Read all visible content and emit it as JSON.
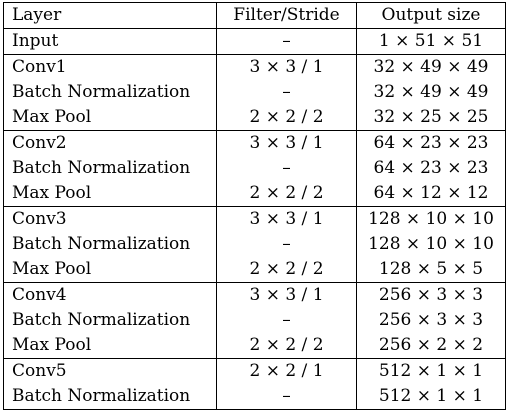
{
  "table": {
    "headers": [
      "Layer",
      "Filter/Stride",
      "Output size"
    ],
    "rows": [
      {
        "layer": "Input",
        "filter": "–",
        "output": "1 × 51 × 51",
        "group_start": true
      },
      {
        "layer": "Conv1",
        "filter": "3 × 3 / 1",
        "output": "32 × 49 × 49",
        "group_start": true
      },
      {
        "layer": "Batch Normalization",
        "filter": "–",
        "output": "32 × 49 × 49",
        "group_start": false
      },
      {
        "layer": "Max Pool",
        "filter": "2 × 2 / 2",
        "output": "32 × 25 × 25",
        "group_start": false
      },
      {
        "layer": "Conv2",
        "filter": "3 × 3 / 1",
        "output": "64 × 23 × 23",
        "group_start": true
      },
      {
        "layer": "Batch Normalization",
        "filter": "–",
        "output": "64 × 23 × 23",
        "group_start": false
      },
      {
        "layer": "Max Pool",
        "filter": "2 × 2 / 2",
        "output": "64 × 12 × 12",
        "group_start": false
      },
      {
        "layer": "Conv3",
        "filter": "3 × 3 / 1",
        "output": "128 × 10 × 10",
        "group_start": true
      },
      {
        "layer": "Batch Normalization",
        "filter": "–",
        "output": "128 × 10 × 10",
        "group_start": false
      },
      {
        "layer": "Max Pool",
        "filter": "2 × 2 / 2",
        "output": "128 × 5 × 5",
        "group_start": false
      },
      {
        "layer": "Conv4",
        "filter": "3 × 3 / 1",
        "output": "256 × 3 × 3",
        "group_start": true
      },
      {
        "layer": "Batch Normalization",
        "filter": "–",
        "output": "256 × 3 × 3",
        "group_start": false
      },
      {
        "layer": "Max Pool",
        "filter": "2 × 2 / 2",
        "output": "256 × 2 × 2",
        "group_start": false
      },
      {
        "layer": "Conv5",
        "filter": "2 × 2 / 1",
        "output": "512 × 1 × 1",
        "group_start": true
      },
      {
        "layer": "Batch Normalization",
        "filter": "–",
        "output": "512 × 1 × 1",
        "group_start": false
      }
    ]
  }
}
